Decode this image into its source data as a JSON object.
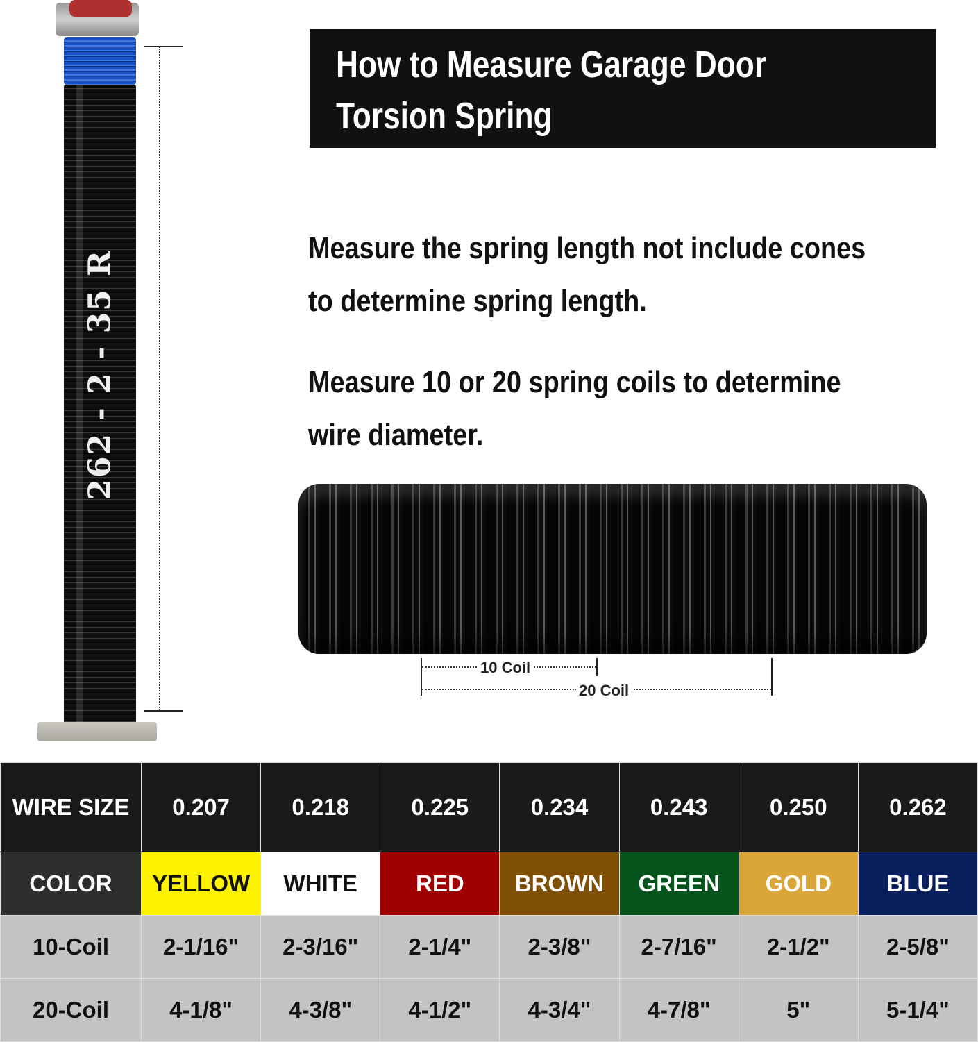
{
  "spring_marking": "262 - 2 - 35 R",
  "title": [
    "How to Measure Garage Door",
    "Torsion Spring"
  ],
  "instructions": [
    [
      "Measure the spring length not include cones",
      "to determine spring length."
    ],
    [
      "Measure 10 or 20 spring coils to determine",
      "wire diameter."
    ]
  ],
  "dimension_labels": {
    "ten": "10 Coil",
    "twenty": "20 Coil"
  },
  "table": {
    "row_headers": [
      "WIRE SIZE",
      "COLOR",
      "10-Coil",
      "20-Coil"
    ],
    "wire_sizes": [
      "0.207",
      "0.218",
      "0.225",
      "0.234",
      "0.243",
      "0.250",
      "0.262"
    ],
    "colors": [
      {
        "name": "YELLOW",
        "bg": "#fff200",
        "fg": "#111111"
      },
      {
        "name": "WHITE",
        "bg": "#ffffff",
        "fg": "#111111"
      },
      {
        "name": "RED",
        "bg": "#a00000",
        "fg": "#ffffff"
      },
      {
        "name": "BROWN",
        "bg": "#7f4f05",
        "fg": "#ffffff"
      },
      {
        "name": "GREEN",
        "bg": "#05541c",
        "fg": "#ffffff"
      },
      {
        "name": "GOLD",
        "bg": "#d9a637",
        "fg": "#ffffff"
      },
      {
        "name": "BLUE",
        "bg": "#0a1f5e",
        "fg": "#ffffff"
      }
    ],
    "ten_coil": [
      "2-1/16\"",
      "2-3/16\"",
      "2-1/4\"",
      "2-3/8\"",
      "2-7/16\"",
      "2-1/2\"",
      "2-5/8\""
    ],
    "twenty_coil": [
      "4-1/8\"",
      "4-3/8\"",
      "4-1/2\"",
      "4-3/4\"",
      "4-7/8\"",
      "5\"",
      "5-1/4\""
    ]
  }
}
